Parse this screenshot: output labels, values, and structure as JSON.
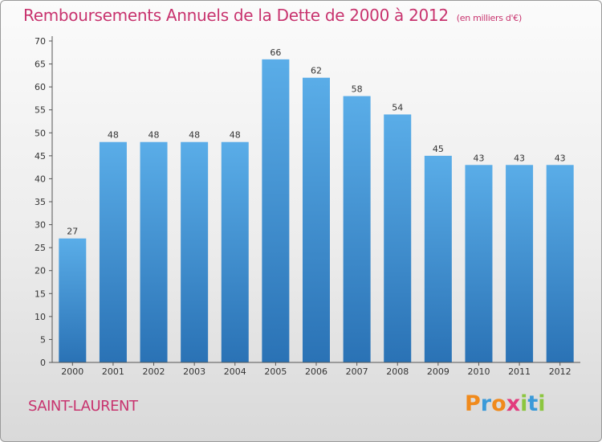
{
  "chart_data": {
    "type": "bar",
    "title": "Remboursements Annuels de la Dette de 2000 à 2012",
    "unit": "(en milliers d'€)",
    "categories": [
      "2000",
      "2001",
      "2002",
      "2003",
      "2004",
      "2005",
      "2006",
      "2007",
      "2008",
      "2009",
      "2010",
      "2011",
      "2012"
    ],
    "values": [
      27,
      48,
      48,
      48,
      48,
      66,
      62,
      58,
      54,
      45,
      43,
      43,
      43
    ],
    "ylim": [
      0,
      70
    ],
    "yticks": [
      0,
      5,
      10,
      15,
      20,
      25,
      30,
      35,
      40,
      45,
      50,
      55,
      60,
      65,
      70
    ],
    "grid": false,
    "bar_color_top": "#5aade8",
    "bar_color_bottom": "#2a72b5"
  },
  "location": "SAINT-LAURENT",
  "brand": {
    "letters": [
      "P",
      "r",
      "o",
      "x",
      "i",
      "t",
      "i"
    ],
    "colors": [
      "#f08a1c",
      "#3a9ad9",
      "#f08a1c",
      "#e23b7d",
      "#8cc63f",
      "#3a9ad9",
      "#8cc63f"
    ]
  },
  "accent_color": "#c8336e"
}
